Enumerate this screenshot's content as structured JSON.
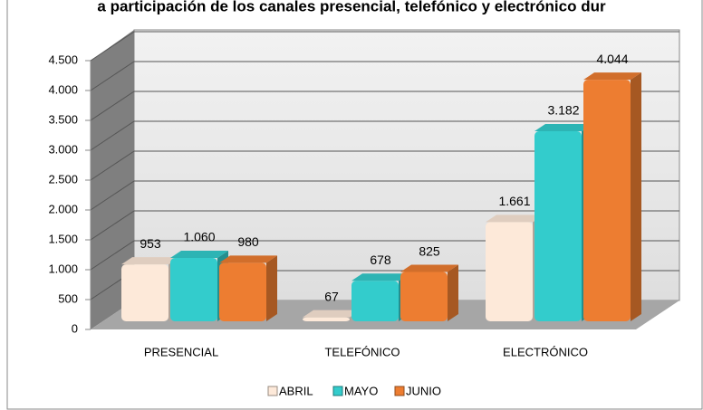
{
  "chart_data": {
    "type": "bar3d",
    "title": "a participación de los canales presencial, telefónico y electrónico dur",
    "categories": [
      "PRESENCIAL",
      "TELEFÓNICO",
      "ELECTRÓNICO"
    ],
    "series": [
      {
        "name": "ABRIL",
        "color": "#fde9d9",
        "values": [
          953,
          67,
          1661
        ],
        "value_labels": [
          "953",
          "67",
          "1.661"
        ]
      },
      {
        "name": "MAYO",
        "color": "#33cccc",
        "values": [
          1060,
          678,
          3182
        ],
        "value_labels": [
          "1.060",
          "678",
          "3.182"
        ]
      },
      {
        "name": "JUNIO",
        "color": "#ed7d31",
        "values": [
          980,
          825,
          4044
        ],
        "value_labels": [
          "980",
          "825",
          "4.044"
        ]
      }
    ],
    "ylim": [
      0,
      4500
    ],
    "yticks": [
      0,
      500,
      {
        "value": 1000,
        "label": "1.000"
      },
      {
        "value": 1500,
        "label": "1.500"
      },
      {
        "value": 2000,
        "label": "2.000"
      },
      {
        "value": 2500,
        "label": "2.500"
      },
      {
        "value": 3000,
        "label": "3.000"
      },
      {
        "value": 3500,
        "label": "3.500"
      },
      {
        "value": 4000,
        "label": "4.000"
      },
      {
        "value": 4500,
        "label": "4.500"
      }
    ],
    "grid": true,
    "legend": "bottom"
  }
}
